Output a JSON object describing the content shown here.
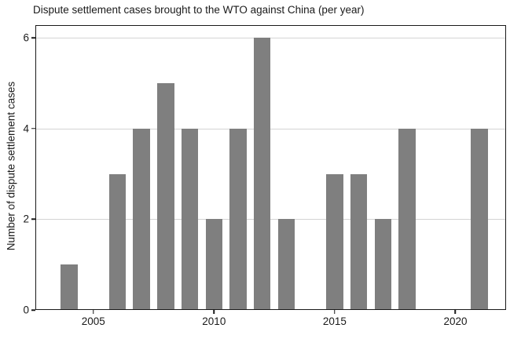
{
  "chart_data": {
    "type": "bar",
    "title": "Dispute settlement cases brought to the WTO against China (per year)",
    "xlabel": "",
    "ylabel": "Number of dispute settlement cases",
    "x": [
      2004,
      2005,
      2006,
      2007,
      2008,
      2009,
      2010,
      2011,
      2012,
      2013,
      2014,
      2015,
      2016,
      2017,
      2018,
      2019,
      2020,
      2021
    ],
    "values": [
      1,
      0,
      3,
      4,
      5,
      4,
      2,
      4,
      6,
      2,
      0,
      3,
      3,
      2,
      4,
      0,
      0,
      4
    ],
    "x_ticks": [
      2005,
      2010,
      2015,
      2020
    ],
    "y_ticks": [
      0,
      2,
      4,
      6
    ],
    "xlim": [
      2002.6,
      2022.1
    ],
    "ylim": [
      0,
      6.28
    ],
    "bar_width": 0.7,
    "bar_color": "#7f7f7f",
    "grid": true,
    "grid_color": "#d4d4d4",
    "frame_color": "#1a1a1a",
    "background": "#ffffff",
    "legend": "none"
  }
}
